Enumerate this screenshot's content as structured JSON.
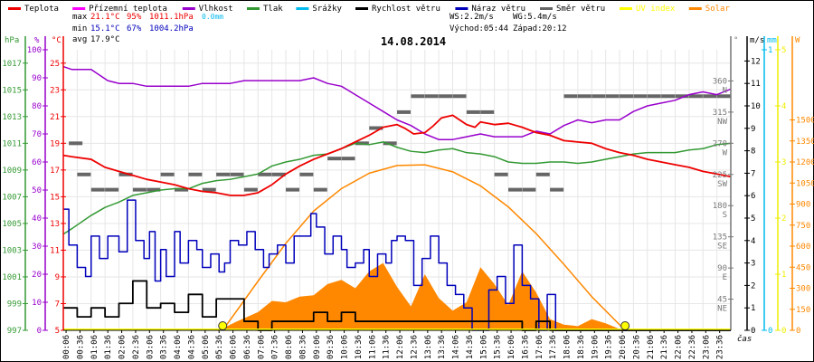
{
  "chart_data": {
    "type": "line",
    "title": "14.08.2014",
    "xlabel": "čas",
    "legend": [
      {
        "name": "Teplota",
        "color": "#ee0000"
      },
      {
        "name": "Přízemní teplota",
        "color": "#ff00ff"
      },
      {
        "name": "Vlhkost",
        "color": "#9900cc"
      },
      {
        "name": "Tlak",
        "color": "#339933"
      },
      {
        "name": "Srážky",
        "color": "#00bbee"
      },
      {
        "name": "Rychlost větru",
        "color": "#000000"
      },
      {
        "name": "Náraz větru",
        "color": "#0000bb"
      },
      {
        "name": "Směr větru",
        "color": "#666666"
      },
      {
        "name": "UV index",
        "color": "#ffff00"
      },
      {
        "name": "Solar",
        "color": "#ff8800"
      }
    ],
    "legend_placement": "top",
    "stats": {
      "max_label": "max",
      "max_temp": "21.1°C",
      "max_hum": "95%",
      "max_press": "1011.1hPa",
      "max_rain": "0.0mm",
      "min_label": "min",
      "min_temp": "15.1°C",
      "min_hum": "67%",
      "min_press": "1004.2hPa",
      "avg_label": "avg",
      "avg_temp": "17.9°C",
      "ws": "WS:2.2m/s",
      "wg": "WG:5.4m/s",
      "sunrise": "Východ:05:44",
      "sunset": "Západ:20:12"
    },
    "axes": {
      "hpa": {
        "label": "hPa",
        "ticks": [
          "997",
          "999",
          "1001",
          "1003",
          "1005",
          "1007",
          "1009",
          "1011",
          "1013",
          "1015",
          "1017"
        ],
        "range": [
          997,
          1018
        ]
      },
      "pct": {
        "label": "%",
        "ticks": [
          "0",
          "10",
          "20",
          "30",
          "40",
          "50",
          "60",
          "70",
          "80",
          "90",
          "100"
        ],
        "range": [
          0,
          100
        ]
      },
      "temp": {
        "label": "°C",
        "ticks": [
          "5",
          "7",
          "9",
          "11",
          "13",
          "15",
          "17",
          "19",
          "21",
          "23",
          "25"
        ],
        "range": [
          5,
          26
        ]
      },
      "dir": {
        "label": "°",
        "ticks": [
          [
            "45",
            "NE"
          ],
          [
            "90",
            "E"
          ],
          [
            "135",
            "SE"
          ],
          [
            "180",
            "S"
          ],
          [
            "225",
            "SW"
          ],
          [
            "270",
            "W"
          ],
          [
            "315",
            "NW"
          ],
          [
            "360",
            "N"
          ]
        ],
        "range": [
          0,
          405
        ]
      },
      "ms": {
        "label": "m/s",
        "ticks": [
          "0",
          "1",
          "2",
          "3",
          "4",
          "5",
          "6",
          "7",
          "8",
          "9",
          "10",
          "11",
          "12"
        ],
        "range": [
          0,
          12.5
        ]
      },
      "mm": {
        "label": "mm",
        "ticks": [
          "0",
          "1"
        ],
        "range": [
          0,
          1
        ]
      },
      "uv": {
        "label": "",
        "ticks": [
          "0",
          "1",
          "2",
          "3",
          "4",
          "5"
        ],
        "range": [
          0,
          5
        ]
      },
      "w": {
        "label": "W",
        "ticks": [
          "0",
          "150",
          "300",
          "450",
          "600",
          "750",
          "900",
          "1050",
          "1200",
          "1350",
          "1500"
        ],
        "range": [
          0,
          2000
        ]
      }
    },
    "x_ticks": [
      "00:06",
      "00:36",
      "01:06",
      "01:36",
      "02:06",
      "02:36",
      "03:06",
      "03:36",
      "04:06",
      "04:36",
      "05:06",
      "05:36",
      "06:06",
      "06:36",
      "07:06",
      "07:36",
      "08:06",
      "08:36",
      "09:06",
      "09:36",
      "10:06",
      "10:36",
      "11:06",
      "11:36",
      "12:06",
      "12:36",
      "13:06",
      "13:36",
      "14:06",
      "14:36",
      "15:06",
      "15:36",
      "16:06",
      "16:36",
      "17:06",
      "17:36",
      "18:06",
      "18:36",
      "19:06",
      "19:36",
      "20:06",
      "20:36",
      "21:06",
      "21:36",
      "22:06",
      "22:36",
      "23:06",
      "23:36"
    ],
    "x_range_hours": [
      0,
      24
    ],
    "series": [
      {
        "name": "Teplota",
        "unit": "°C",
        "x": [
          0,
          0.3,
          1,
          1.5,
          2,
          2.5,
          3,
          3.5,
          4,
          4.5,
          5,
          5.5,
          6,
          6.5,
          7,
          7.5,
          8,
          8.5,
          9,
          9.5,
          10,
          10.5,
          11,
          11.5,
          12,
          12.3,
          12.6,
          13,
          13.3,
          13.6,
          14,
          14.5,
          14.8,
          15,
          15.5,
          16,
          16.5,
          17,
          17.5,
          18,
          18.5,
          19,
          19.5,
          20,
          20.5,
          21,
          21.5,
          22,
          22.5,
          23,
          23.5,
          24
        ],
        "values": [
          18.1,
          18,
          17.8,
          17.2,
          16.9,
          16.6,
          16.3,
          16.1,
          15.9,
          15.6,
          15.4,
          15.3,
          15.1,
          15.1,
          15.3,
          15.9,
          16.7,
          17.3,
          17.8,
          18.2,
          18.6,
          19.1,
          19.6,
          20.2,
          20.4,
          20.1,
          19.7,
          19.8,
          20.3,
          20.9,
          21.1,
          20.4,
          20.2,
          20.6,
          20.4,
          20.5,
          20.2,
          19.8,
          19.6,
          19.2,
          19.1,
          19.0,
          18.6,
          18.3,
          18.1,
          17.8,
          17.6,
          17.4,
          17.2,
          16.9,
          16.7,
          16.5
        ]
      },
      {
        "name": "Vlhkost",
        "unit": "%",
        "x": [
          0,
          0.3,
          1,
          1.6,
          2,
          2.5,
          3,
          3.5,
          4,
          4.5,
          5,
          5.5,
          6,
          6.5,
          7,
          7.5,
          8,
          8.5,
          9,
          9.5,
          10,
          10.5,
          11,
          11.5,
          12,
          12.5,
          13,
          13.5,
          14,
          14.5,
          15,
          15.5,
          16,
          16.5,
          17,
          17.5,
          18,
          18.5,
          19,
          19.5,
          20,
          20.5,
          21,
          21.5,
          22,
          22.5,
          23,
          23.5,
          24
        ],
        "values": [
          94,
          93,
          93,
          89,
          88,
          88,
          87,
          87,
          87,
          87,
          88,
          88,
          88,
          89,
          89,
          89,
          89,
          89,
          90,
          88,
          87,
          84,
          81,
          78,
          75,
          73,
          70,
          68,
          68,
          69,
          70,
          69,
          69,
          69,
          71,
          70,
          73,
          75,
          74,
          75,
          75,
          78,
          80,
          81,
          82,
          84,
          85,
          84,
          86
        ]
      },
      {
        "name": "Tlak",
        "unit": "hPa",
        "x": [
          0,
          0.3,
          1,
          1.5,
          2,
          2.5,
          3,
          3.5,
          4,
          4.5,
          5,
          5.5,
          6,
          6.5,
          7,
          7.5,
          8,
          8.5,
          9,
          9.5,
          10,
          10.5,
          11,
          11.5,
          12,
          12.5,
          13,
          13.5,
          14,
          14.5,
          15,
          15.5,
          16,
          16.5,
          17,
          17.5,
          18,
          18.5,
          19,
          19.5,
          20,
          20.5,
          21,
          21.5,
          22,
          22.5,
          23,
          23.5,
          24
        ],
        "values": [
          1004.2,
          1004.6,
          1005.6,
          1006.2,
          1006.6,
          1007.1,
          1007.3,
          1007.5,
          1007.6,
          1007.6,
          1008.0,
          1008.2,
          1008.3,
          1008.5,
          1008.7,
          1009.3,
          1009.6,
          1009.8,
          1010.1,
          1010.2,
          1010.6,
          1011.0,
          1010.9,
          1011.1,
          1010.7,
          1010.4,
          1010.3,
          1010.5,
          1010.6,
          1010.3,
          1010.2,
          1010.0,
          1009.6,
          1009.5,
          1009.5,
          1009.6,
          1009.6,
          1009.5,
          1009.6,
          1009.8,
          1010.0,
          1010.2,
          1010.3,
          1010.3,
          1010.3,
          1010.5,
          1010.6,
          1010.9,
          1011.0
        ]
      },
      {
        "name": "Náraz větru",
        "unit": "m/s",
        "x": [
          0,
          0.2,
          0.5,
          0.8,
          1,
          1.3,
          1.6,
          2,
          2.3,
          2.6,
          2.9,
          3.1,
          3.3,
          3.5,
          3.7,
          4,
          4.2,
          4.5,
          4.8,
          5,
          5.3,
          5.6,
          5.8,
          6,
          6.3,
          6.6,
          6.9,
          7.2,
          7.4,
          7.7,
          8,
          8.3,
          8.6,
          8.9,
          9.1,
          9.4,
          9.7,
          10,
          10.2,
          10.5,
          10.8,
          11,
          11.3,
          11.6,
          11.8,
          12,
          12.3,
          12.6,
          12.9,
          13.2,
          13.5,
          13.8,
          14.1,
          14.4,
          14.7,
          15,
          15.3,
          15.6,
          15.9,
          16.2,
          16.5,
          16.8,
          17.1,
          17.4,
          17.7,
          18,
          24
        ],
        "values": [
          5.4,
          3.8,
          2.8,
          2.4,
          4.2,
          3.2,
          4.2,
          3.5,
          5.8,
          4.0,
          3.2,
          4.4,
          2.2,
          3.6,
          2.4,
          4.4,
          3.0,
          4.0,
          3.6,
          2.8,
          3.4,
          2.6,
          3.0,
          4.0,
          3.8,
          4.4,
          3.6,
          2.8,
          3.4,
          3.8,
          3.0,
          4.2,
          4.2,
          5.2,
          4.6,
          3.4,
          4.2,
          3.6,
          2.8,
          3.0,
          3.6,
          2.4,
          3.4,
          3.0,
          4.0,
          4.2,
          4.0,
          2.0,
          3.2,
          4.2,
          3.0,
          2.0,
          1.6,
          1.0,
          0.0,
          0.0,
          1.8,
          2.4,
          1.2,
          3.8,
          2.0,
          1.4,
          0.0,
          1.6,
          0.0,
          0.0,
          0.0
        ]
      },
      {
        "name": "Rychlost větru",
        "unit": "m/s",
        "x": [
          0,
          0.5,
          1,
          1.5,
          2,
          2.5,
          3,
          3.5,
          4,
          4.5,
          5,
          5.5,
          6,
          6.5,
          7,
          7.5,
          8,
          8.5,
          9,
          9.5,
          10,
          10.5,
          11,
          11.5,
          12,
          12.5,
          13,
          13.5,
          14,
          14.5,
          15,
          15.5,
          16,
          16.5,
          17,
          17.5,
          18,
          24
        ],
        "values": [
          1.0,
          0.6,
          1.0,
          0.6,
          1.2,
          2.2,
          1.0,
          1.2,
          0.8,
          1.6,
          0.6,
          1.4,
          1.4,
          0.4,
          0.0,
          0.4,
          0.4,
          0.4,
          0.8,
          0.4,
          0.8,
          0.4,
          0.4,
          0.4,
          0.4,
          0.4,
          0.4,
          0.4,
          0.4,
          0.4,
          0.4,
          0.4,
          0.4,
          0.0,
          0.4,
          0.0,
          0.0,
          0.0
        ]
      },
      {
        "name": "Směr větru",
        "unit": "°",
        "note": "scatter",
        "x": [
          0.2,
          0.5,
          1,
          1.5,
          2,
          2.5,
          3,
          3.5,
          4,
          4.5,
          5,
          5.5,
          6,
          6.5,
          7,
          7.5,
          8,
          8.5,
          9,
          9.5,
          10,
          10.5,
          11,
          11.5,
          12,
          12.5,
          13,
          13.5,
          14,
          14.5,
          15,
          15.5,
          16,
          16.5,
          17,
          17.5,
          18,
          18.5,
          19,
          19.5,
          20,
          20.5,
          21,
          21.5,
          22,
          22.5,
          23,
          23.5
        ],
        "values": [
          270,
          225,
          203,
          203,
          225,
          203,
          203,
          225,
          203,
          225,
          203,
          225,
          225,
          203,
          225,
          225,
          203,
          225,
          203,
          248,
          248,
          270,
          292,
          270,
          315,
          338,
          338,
          338,
          338,
          315,
          315,
          225,
          203,
          203,
          225,
          203,
          338,
          338,
          338,
          338,
          338,
          338,
          338,
          338,
          338,
          338,
          338,
          338
        ]
      },
      {
        "name": "Solar",
        "unit": "W",
        "note": "area",
        "x": [
          0,
          5.6,
          6.2,
          7,
          7.5,
          8,
          8.5,
          9,
          9.5,
          10,
          10.5,
          11,
          11.5,
          12,
          12.5,
          13,
          13.5,
          14,
          14.5,
          15,
          15.5,
          16,
          16.5,
          17,
          17.5,
          18,
          18.5,
          19,
          19.5,
          20,
          20.2,
          24
        ],
        "values": [
          0,
          0,
          60,
          130,
          210,
          200,
          240,
          250,
          330,
          360,
          300,
          420,
          480,
          310,
          170,
          400,
          230,
          140,
          200,
          450,
          330,
          180,
          420,
          270,
          80,
          40,
          30,
          80,
          50,
          10,
          0,
          0
        ]
      },
      {
        "name": "Solar (theoretical)",
        "unit": "W",
        "x": [
          5.73,
          7,
          8,
          9,
          10,
          11,
          12,
          13,
          14,
          15,
          16,
          17,
          18,
          19,
          20.2
        ],
        "values": [
          0,
          350,
          620,
          850,
          1010,
          1120,
          1175,
          1180,
          1130,
          1030,
          880,
          690,
          470,
          240,
          0
        ]
      },
      {
        "name": "UV index",
        "unit": "",
        "x": [
          0,
          24
        ],
        "values": [
          0,
          0
        ]
      }
    ],
    "markers": [
      {
        "name": "sunrise",
        "x": 5.73
      },
      {
        "name": "sunset",
        "x": 20.2
      }
    ]
  }
}
